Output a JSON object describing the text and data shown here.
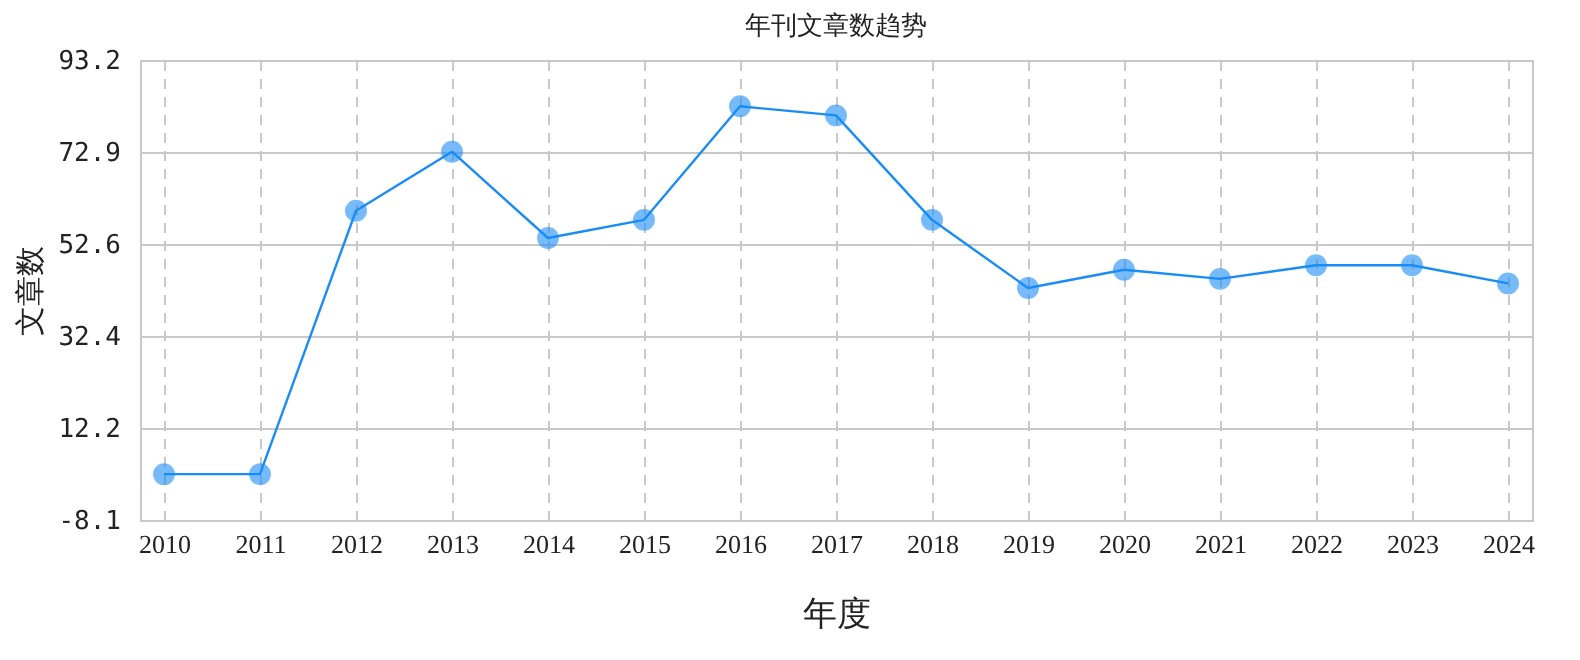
{
  "chart_data": {
    "type": "line",
    "title": "年刊文章数趋势",
    "xlabel": "年度",
    "ylabel": "文章数",
    "categories": [
      "2010",
      "2011",
      "2012",
      "2013",
      "2014",
      "2015",
      "2016",
      "2017",
      "2018",
      "2019",
      "2020",
      "2021",
      "2022",
      "2023",
      "2024"
    ],
    "series": [
      {
        "color": "#1a8cf5",
        "values": [
          2,
          2,
          60,
          73,
          54,
          58,
          83,
          81,
          58,
          43,
          47,
          45,
          48,
          48,
          44
        ]
      }
    ],
    "ylim": [
      -8.1,
      93.2
    ],
    "yticks": [
      -8.1,
      12.2,
      32.4,
      52.6,
      72.9,
      93.2
    ],
    "grid": true,
    "marker": "circle",
    "line_style": "solid",
    "legend": false
  }
}
